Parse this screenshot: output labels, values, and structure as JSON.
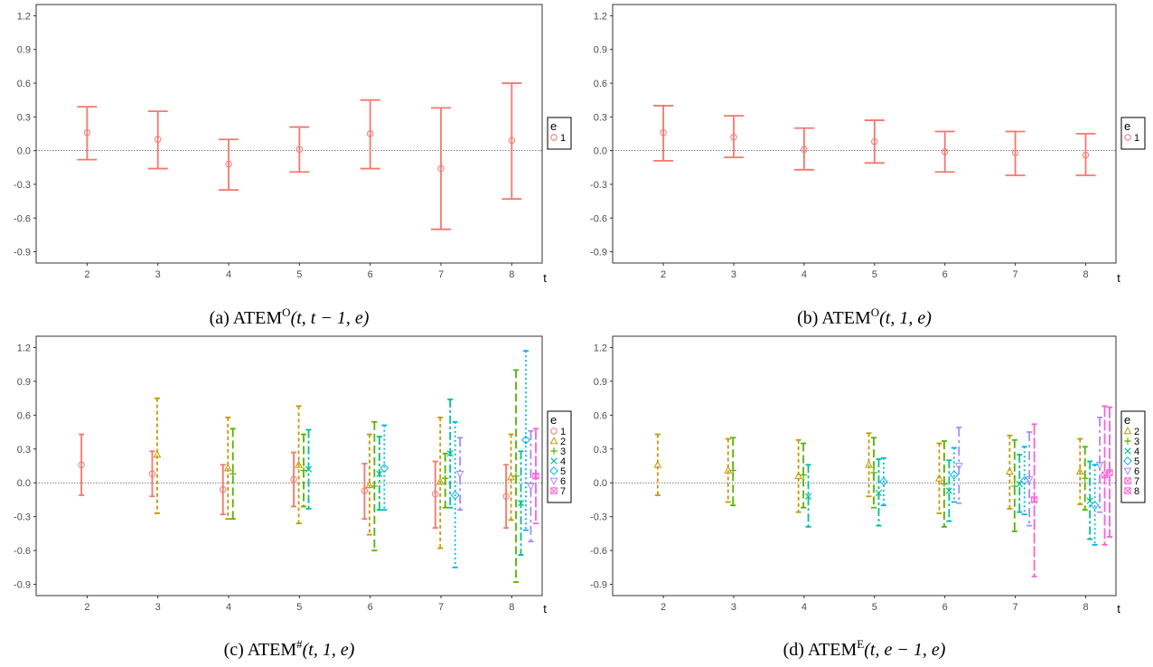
{
  "colors": {
    "1": "#F8766D",
    "2": "#C49A00",
    "3": "#53B400",
    "4": "#00C094",
    "5": "#00B6EB",
    "6": "#A58AFF",
    "7": "#FB61D7",
    "8": "#FB61D7"
  },
  "chart_data": [
    {
      "type": "errorbar",
      "caption": {
        "prefix": "(a) ATEM",
        "sup": "O",
        "args": "(t, t − 1, e)"
      },
      "xlabel": "t",
      "legend_title": "e",
      "ylim": [
        -1.0,
        1.3
      ],
      "yticks": [
        "-0.9",
        "-0.6",
        "-0.3",
        "0.0",
        "0.3",
        "0.6",
        "0.9",
        "1.2"
      ],
      "categories": [
        "2",
        "3",
        "4",
        "5",
        "6",
        "7",
        "8"
      ],
      "series": [
        {
          "name": "1",
          "points": [
            {
              "t": "2",
              "y": 0.16,
              "lo": -0.08,
              "hi": 0.39
            },
            {
              "t": "3",
              "y": 0.1,
              "lo": -0.16,
              "hi": 0.35
            },
            {
              "t": "4",
              "y": -0.12,
              "lo": -0.35,
              "hi": 0.1
            },
            {
              "t": "5",
              "y": 0.01,
              "lo": -0.19,
              "hi": 0.21
            },
            {
              "t": "6",
              "y": 0.15,
              "lo": -0.16,
              "hi": 0.45
            },
            {
              "t": "7",
              "y": -0.16,
              "lo": -0.7,
              "hi": 0.38
            },
            {
              "t": "8",
              "y": 0.09,
              "lo": -0.43,
              "hi": 0.6
            }
          ]
        }
      ]
    },
    {
      "type": "errorbar",
      "caption": {
        "prefix": "(b) ATEM",
        "sup": "O",
        "args": "(t, 1, e)"
      },
      "xlabel": "t",
      "legend_title": "e",
      "ylim": [
        -1.0,
        1.3
      ],
      "yticks": [
        "-0.9",
        "-0.6",
        "-0.3",
        "0.0",
        "0.3",
        "0.6",
        "0.9",
        "1.2"
      ],
      "categories": [
        "2",
        "3",
        "4",
        "5",
        "6",
        "7",
        "8"
      ],
      "series": [
        {
          "name": "1",
          "points": [
            {
              "t": "2",
              "y": 0.16,
              "lo": -0.09,
              "hi": 0.4
            },
            {
              "t": "3",
              "y": 0.12,
              "lo": -0.06,
              "hi": 0.31
            },
            {
              "t": "4",
              "y": 0.01,
              "lo": -0.17,
              "hi": 0.2
            },
            {
              "t": "5",
              "y": 0.08,
              "lo": -0.11,
              "hi": 0.27
            },
            {
              "t": "6",
              "y": -0.01,
              "lo": -0.19,
              "hi": 0.17
            },
            {
              "t": "7",
              "y": -0.02,
              "lo": -0.22,
              "hi": 0.17
            },
            {
              "t": "8",
              "y": -0.04,
              "lo": -0.22,
              "hi": 0.15
            }
          ]
        }
      ]
    },
    {
      "type": "errorbar",
      "caption": {
        "prefix": "(c) ATEM",
        "sup": "#",
        "args": "(t, 1, e)"
      },
      "xlabel": "t",
      "legend_title": "e",
      "ylim": [
        -1.0,
        1.3
      ],
      "yticks": [
        "-0.9",
        "-0.6",
        "-0.3",
        "0.0",
        "0.3",
        "0.6",
        "0.9",
        "1.2"
      ],
      "categories": [
        "2",
        "3",
        "4",
        "5",
        "6",
        "7",
        "8"
      ],
      "series": [
        {
          "name": "1",
          "points": [
            {
              "t": "2",
              "y": 0.16,
              "lo": -0.11,
              "hi": 0.43
            },
            {
              "t": "3",
              "y": 0.08,
              "lo": -0.12,
              "hi": 0.28
            },
            {
              "t": "4",
              "y": -0.06,
              "lo": -0.28,
              "hi": 0.16
            },
            {
              "t": "5",
              "y": 0.03,
              "lo": -0.21,
              "hi": 0.27
            },
            {
              "t": "6",
              "y": -0.07,
              "lo": -0.32,
              "hi": 0.17
            },
            {
              "t": "7",
              "y": -0.1,
              "lo": -0.4,
              "hi": 0.19
            },
            {
              "t": "8",
              "y": -0.12,
              "lo": -0.4,
              "hi": 0.16
            }
          ]
        },
        {
          "name": "2",
          "points": [
            {
              "t": "3",
              "y": 0.25,
              "lo": -0.27,
              "hi": 0.75
            },
            {
              "t": "4",
              "y": 0.13,
              "lo": -0.32,
              "hi": 0.58
            },
            {
              "t": "5",
              "y": 0.16,
              "lo": -0.36,
              "hi": 0.68
            },
            {
              "t": "6",
              "y": -0.02,
              "lo": -0.46,
              "hi": 0.43
            },
            {
              "t": "7",
              "y": 0.01,
              "lo": -0.58,
              "hi": 0.58
            },
            {
              "t": "8",
              "y": 0.05,
              "lo": -0.33,
              "hi": 0.43
            }
          ]
        },
        {
          "name": "3",
          "points": [
            {
              "t": "4",
              "y": 0.08,
              "lo": -0.32,
              "hi": 0.48
            },
            {
              "t": "5",
              "y": 0.11,
              "lo": -0.21,
              "hi": 0.43
            },
            {
              "t": "6",
              "y": -0.03,
              "lo": -0.6,
              "hi": 0.54
            },
            {
              "t": "7",
              "y": 0.04,
              "lo": -0.22,
              "hi": 0.26
            },
            {
              "t": "8",
              "y": 0.06,
              "lo": -0.88,
              "hi": 1.0
            }
          ]
        },
        {
          "name": "4",
          "points": [
            {
              "t": "5",
              "y": 0.12,
              "lo": -0.23,
              "hi": 0.47
            },
            {
              "t": "6",
              "y": 0.08,
              "lo": -0.24,
              "hi": 0.41
            },
            {
              "t": "7",
              "y": 0.26,
              "lo": -0.22,
              "hi": 0.74
            },
            {
              "t": "8",
              "y": -0.18,
              "lo": -0.64,
              "hi": 0.28
            }
          ]
        },
        {
          "name": "5",
          "points": [
            {
              "t": "6",
              "y": 0.13,
              "lo": -0.24,
              "hi": 0.51
            },
            {
              "t": "7",
              "y": -0.11,
              "lo": -0.75,
              "hi": 0.54
            },
            {
              "t": "8",
              "y": 0.38,
              "lo": -0.42,
              "hi": 1.17
            }
          ]
        },
        {
          "name": "6",
          "points": [
            {
              "t": "7",
              "y": 0.08,
              "lo": -0.24,
              "hi": 0.4
            },
            {
              "t": "8",
              "y": -0.03,
              "lo": -0.52,
              "hi": 0.46
            }
          ]
        },
        {
          "name": "7",
          "points": [
            {
              "t": "8",
              "y": 0.06,
              "lo": -0.36,
              "hi": 0.48
            }
          ]
        }
      ]
    },
    {
      "type": "errorbar",
      "caption": {
        "prefix": "(d) ATEM",
        "sup": "E",
        "args": "(t, e − 1, e)"
      },
      "xlabel": "t",
      "legend_title": "e",
      "ylim": [
        -1.0,
        1.3
      ],
      "yticks": [
        "-0.9",
        "-0.6",
        "-0.3",
        "0.0",
        "0.3",
        "0.6",
        "0.9",
        "1.2"
      ],
      "categories": [
        "2",
        "3",
        "4",
        "5",
        "6",
        "7",
        "8"
      ],
      "series": [
        {
          "name": "2",
          "points": [
            {
              "t": "2",
              "y": 0.16,
              "lo": -0.11,
              "hi": 0.43
            },
            {
              "t": "3",
              "y": 0.11,
              "lo": -0.17,
              "hi": 0.39
            },
            {
              "t": "4",
              "y": 0.06,
              "lo": -0.26,
              "hi": 0.38
            },
            {
              "t": "5",
              "y": 0.16,
              "lo": -0.12,
              "hi": 0.44
            },
            {
              "t": "6",
              "y": 0.04,
              "lo": -0.27,
              "hi": 0.35
            },
            {
              "t": "7",
              "y": 0.1,
              "lo": -0.23,
              "hi": 0.42
            },
            {
              "t": "8",
              "y": 0.1,
              "lo": -0.19,
              "hi": 0.39
            }
          ]
        },
        {
          "name": "3",
          "points": [
            {
              "t": "3",
              "y": 0.11,
              "lo": -0.2,
              "hi": 0.4
            },
            {
              "t": "4",
              "y": 0.07,
              "lo": -0.22,
              "hi": 0.35
            },
            {
              "t": "5",
              "y": 0.09,
              "lo": -0.22,
              "hi": 0.4
            },
            {
              "t": "6",
              "y": -0.01,
              "lo": -0.39,
              "hi": 0.37
            },
            {
              "t": "7",
              "y": -0.03,
              "lo": -0.43,
              "hi": 0.38
            },
            {
              "t": "8",
              "y": 0.04,
              "lo": -0.24,
              "hi": 0.32
            }
          ]
        },
        {
          "name": "4",
          "points": [
            {
              "t": "4",
              "y": -0.12,
              "lo": -0.39,
              "hi": 0.16
            },
            {
              "t": "5",
              "y": -0.09,
              "lo": -0.38,
              "hi": 0.21
            },
            {
              "t": "6",
              "y": -0.07,
              "lo": -0.34,
              "hi": 0.2
            },
            {
              "t": "7",
              "y": -0.01,
              "lo": -0.26,
              "hi": 0.25
            },
            {
              "t": "8",
              "y": -0.16,
              "lo": -0.5,
              "hi": 0.19
            }
          ]
        },
        {
          "name": "5",
          "points": [
            {
              "t": "5",
              "y": 0.01,
              "lo": -0.2,
              "hi": 0.22
            },
            {
              "t": "6",
              "y": 0.07,
              "lo": -0.17,
              "hi": 0.31
            },
            {
              "t": "7",
              "y": 0.02,
              "lo": -0.28,
              "hi": 0.32
            },
            {
              "t": "8",
              "y": -0.2,
              "lo": -0.55,
              "hi": 0.16
            }
          ]
        },
        {
          "name": "6",
          "points": [
            {
              "t": "6",
              "y": 0.15,
              "lo": -0.18,
              "hi": 0.49
            },
            {
              "t": "7",
              "y": 0.03,
              "lo": -0.38,
              "hi": 0.45
            },
            {
              "t": "8",
              "y": 0.16,
              "lo": -0.26,
              "hi": 0.58
            }
          ]
        },
        {
          "name": "7",
          "points": [
            {
              "t": "7",
              "y": -0.15,
              "lo": -0.83,
              "hi": 0.52
            },
            {
              "t": "8",
              "y": 0.07,
              "lo": -0.55,
              "hi": 0.68
            }
          ]
        },
        {
          "name": "8",
          "points": [
            {
              "t": "8",
              "y": 0.09,
              "lo": -0.48,
              "hi": 0.67
            }
          ]
        }
      ]
    }
  ]
}
